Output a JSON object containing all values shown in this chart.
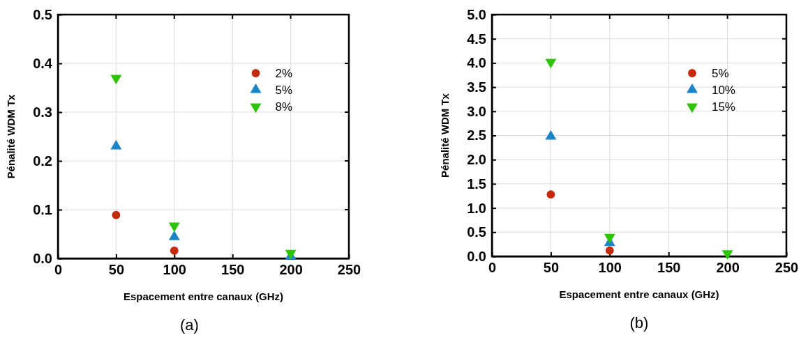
{
  "chart_data": [
    {
      "type": "scatter",
      "xlabel": "Espacement entre canaux (GHz)",
      "ylabel": "Pénalité WDM Tx",
      "x": [
        50,
        100,
        200
      ],
      "series": [
        {
          "name": "2%",
          "color": "#c42a0c",
          "marker": "circle",
          "values": [
            0.089,
            0.016,
            null
          ]
        },
        {
          "name": "5%",
          "color": "#1a86c8",
          "marker": "triangle",
          "values": [
            0.23,
            0.044,
            0.004
          ]
        },
        {
          "name": "8%",
          "color": "#2ec40a",
          "marker": "triangle-down",
          "values": [
            0.37,
            0.067,
            0.011
          ]
        }
      ],
      "xlim": [
        0,
        250
      ],
      "xticks": [
        0,
        50,
        100,
        150,
        200,
        250
      ],
      "ylim": [
        0,
        0.5
      ],
      "yticks": [
        {
          "value": 0,
          "label": "0.0"
        },
        0.1,
        0.2,
        0.3,
        0.4,
        0.5
      ],
      "grid": true,
      "legend": "top right",
      "annotations": [
        "(a)"
      ]
    },
    {
      "type": "scatter",
      "xlabel": "Espacement entre canaux (GHz)",
      "ylabel": "Pénalité WDM Tx",
      "x": [
        50,
        100,
        200
      ],
      "series": [
        {
          "name": "5%",
          "color": "#c42a0c",
          "marker": "circle",
          "values": [
            1.28,
            0.12,
            null
          ]
        },
        {
          "name": "10%",
          "color": "#1a86c8",
          "marker": "triangle",
          "values": [
            2.48,
            0.28,
            null
          ]
        },
        {
          "name": "15%",
          "color": "#2ec40a",
          "marker": "triangle-down",
          "values": [
            4.02,
            0.4,
            0.06
          ]
        }
      ],
      "xlim": [
        0,
        250
      ],
      "xticks": [
        0,
        50,
        100,
        150,
        200,
        250
      ],
      "ylim": [
        0,
        5
      ],
      "yticks": [
        {
          "value": 0,
          "label": "0.0"
        },
        {
          "value": 0.5,
          "label": "0.5"
        },
        {
          "value": 1,
          "label": "1.0"
        },
        {
          "value": 1.5,
          "label": "1.5"
        },
        {
          "value": 2,
          "label": "2.0"
        },
        {
          "value": 2.5,
          "label": "2.5"
        },
        {
          "value": 3,
          "label": "3.0"
        },
        {
          "value": 3.5,
          "label": "3.5"
        },
        {
          "value": 4,
          "label": "4.0"
        },
        {
          "value": 4.5,
          "label": "4.5"
        },
        {
          "value": 5,
          "label": "5.0"
        }
      ],
      "grid": true,
      "legend": "top right",
      "annotations": [
        "(b)"
      ]
    }
  ]
}
